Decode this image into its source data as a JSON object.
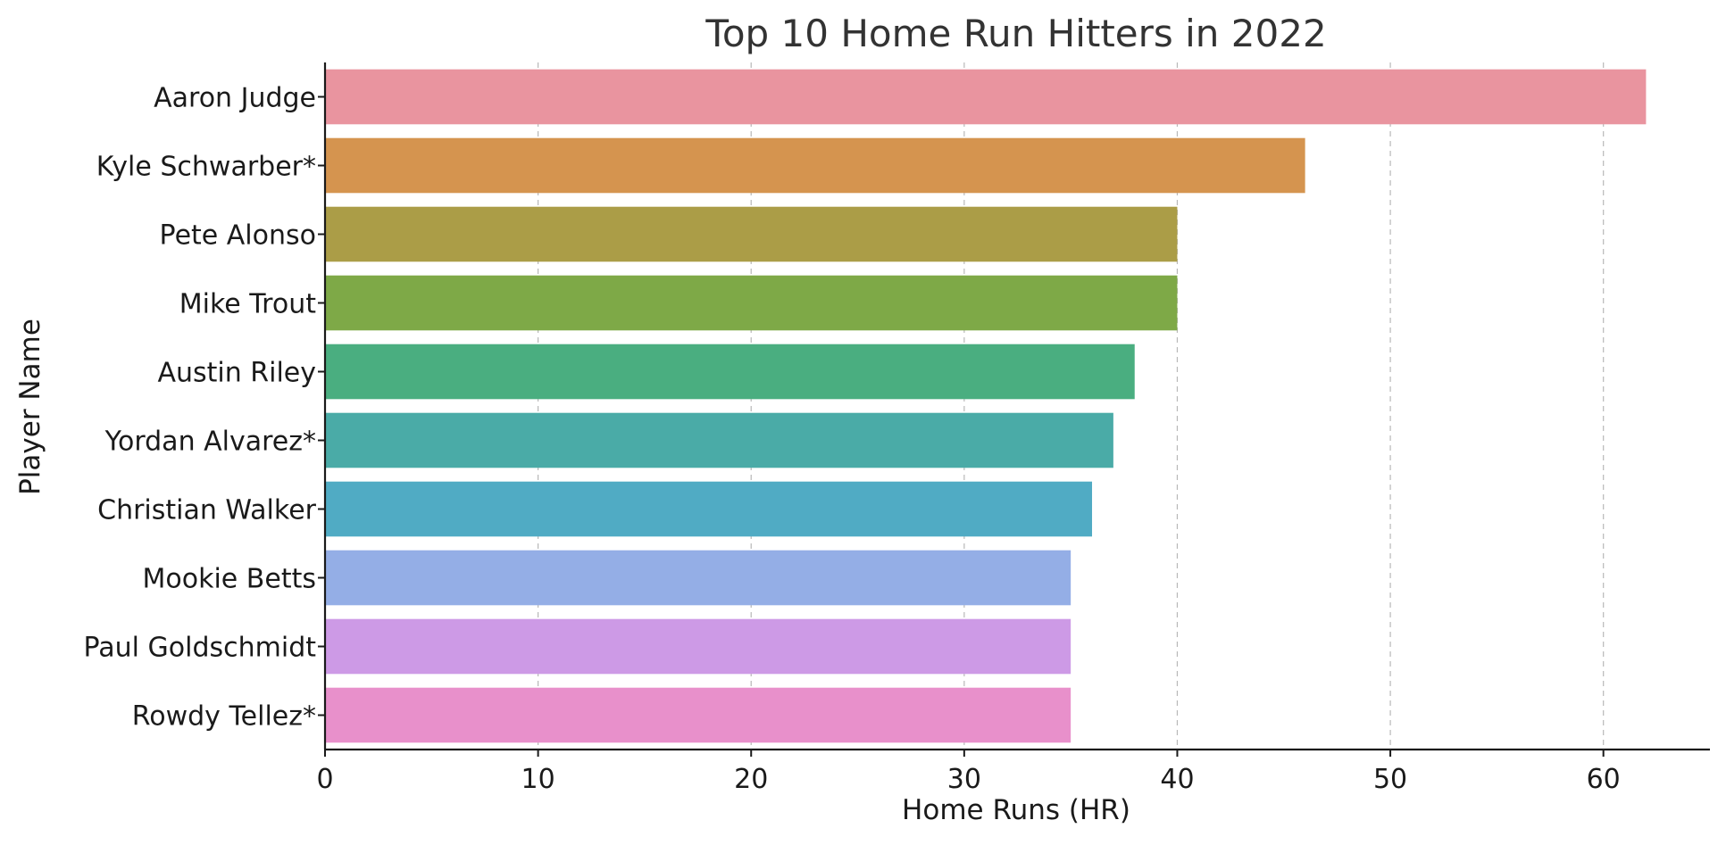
{
  "chart_data": {
    "type": "bar",
    "orientation": "horizontal",
    "title": "Top 10 Home Run Hitters in 2022",
    "xlabel": "Home Runs (HR)",
    "ylabel": "Player Name",
    "categories": [
      "Aaron Judge",
      "Kyle Schwarber*",
      "Pete Alonso",
      "Mike Trout",
      "Austin Riley",
      "Yordan Alvarez*",
      "Christian Walker",
      "Mookie Betts",
      "Paul Goldschmidt",
      "Rowdy Tellez*"
    ],
    "values": [
      62,
      46,
      40,
      40,
      38,
      37,
      36,
      35,
      35,
      35
    ],
    "colors": [
      "#e9949f",
      "#d5944f",
      "#ab9d47",
      "#7ea947",
      "#4aae80",
      "#4aaba7",
      "#50abc4",
      "#94aee6",
      "#cd9ae6",
      "#e890cb"
    ],
    "xlim": [
      0,
      65
    ],
    "xticks": [
      0,
      10,
      20,
      30,
      40,
      50,
      60
    ],
    "grid": "x-dashed",
    "legend": "none"
  }
}
